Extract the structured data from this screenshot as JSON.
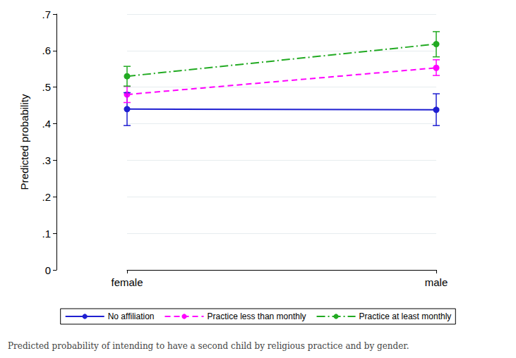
{
  "chart_data": {
    "type": "line",
    "title": "Predicted probability of intending to have a second child by religious practice and by gender.",
    "y_label": "Predicted probability",
    "categories": [
      "female",
      "male"
    ],
    "ylim": [
      0,
      0.7
    ],
    "yticks": [
      0,
      {
        "value": 0.1,
        "label": ".1"
      },
      {
        "value": 0.2,
        "label": ".2"
      },
      {
        "value": 0.3,
        "label": ".3"
      },
      {
        "value": 0.4,
        "label": ".4"
      },
      {
        "value": 0.5,
        "label": ".5"
      },
      {
        "value": 0.6,
        "label": ".6"
      },
      {
        "value": 0.7,
        "label": ".7"
      }
    ],
    "grid": true,
    "legend": "bottom",
    "marker": "circle",
    "series": [
      {
        "name": "No affiliation",
        "color": "#1f1fd1",
        "line_style": "solid",
        "values": [
          0.44,
          0.438
        ],
        "ci_low": [
          0.395,
          0.395
        ],
        "ci_high": [
          0.485,
          0.482
        ]
      },
      {
        "name": "Practice less than monthly",
        "color": "#ff00ff",
        "line_style": "dashed",
        "values": [
          0.48,
          0.553
        ],
        "ci_low": [
          0.458,
          0.532
        ],
        "ci_high": [
          0.502,
          0.575
        ]
      },
      {
        "name": "Practice at least monthly",
        "color": "#22aa22",
        "line_style": "dashdot",
        "values": [
          0.53,
          0.618
        ],
        "ci_low": [
          0.503,
          0.583
        ],
        "ci_high": [
          0.557,
          0.652
        ]
      }
    ]
  }
}
